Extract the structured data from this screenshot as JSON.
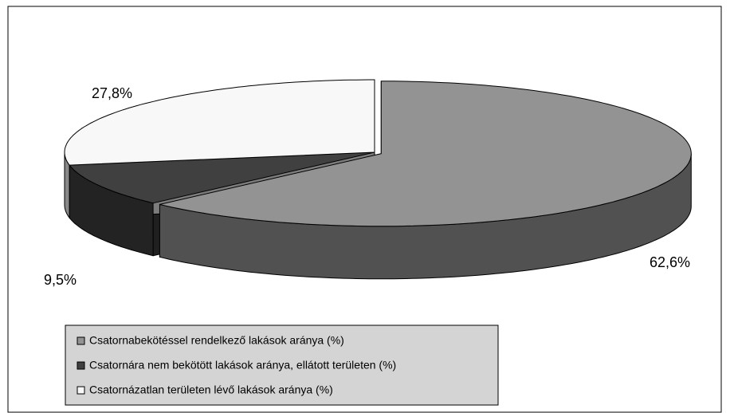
{
  "chart_data": {
    "type": "pie",
    "categories": [
      "Csatornabekötéssel rendelkező lakások aránya (%)",
      "Csatornára nem bekötött lakások aránya, ellátott területen (%)",
      "Csatornázatlan területen lévő lakások aránya (%)"
    ],
    "values": [
      62.6,
      9.5,
      27.8
    ],
    "value_labels": [
      "62,6%",
      "9,5%",
      "27,8%"
    ],
    "colors": [
      "#939393",
      "#404040",
      "#f8f8f8"
    ],
    "legend": "bottom-left"
  }
}
